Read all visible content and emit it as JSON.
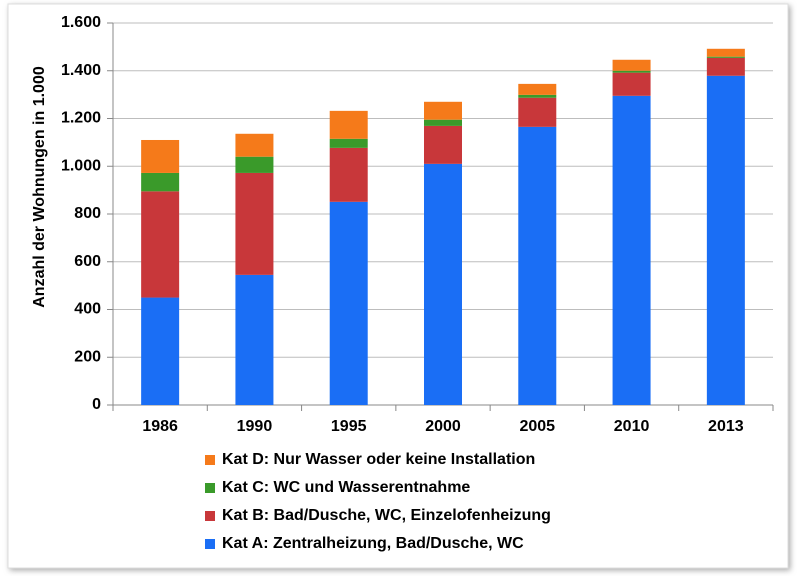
{
  "chart_data": {
    "type": "stacked_bar",
    "y_axis_label": "Anzahl der Wohnungen in 1.000",
    "categories": [
      "1986",
      "1990",
      "1995",
      "2000",
      "2005",
      "2010",
      "2013"
    ],
    "series": [
      {
        "name": "Kat A: Zentralheizung, Bad/Dusche, WC",
        "color": "#1a6ef5",
        "values": [
          450,
          545,
          851,
          1010,
          1165,
          1295,
          1379
        ]
      },
      {
        "name": "Kat B: Bad/Dusche, WC, Einzelofenheizung",
        "color": "#c8373a",
        "values": [
          445,
          427,
          226,
          159,
          122,
          97,
          75
        ]
      },
      {
        "name": "Kat C: WC und Wasserentnahme",
        "color": "#3a9a2a",
        "values": [
          77,
          68,
          38,
          26,
          12,
          8,
          5
        ]
      },
      {
        "name": "Kat D: Nur Wasser oder keine Installation",
        "color": "#f57a1a",
        "values": [
          138,
          96,
          117,
          75,
          46,
          46,
          33
        ]
      }
    ],
    "ylim": [
      0,
      1600
    ],
    "yticks": [
      0,
      200,
      400,
      600,
      800,
      {
        "value": 1000,
        "label": "1.000"
      },
      {
        "value": 1200,
        "label": "1.200"
      },
      {
        "value": 1400,
        "label": "1.400"
      },
      {
        "value": 1600,
        "label": "1.600"
      }
    ],
    "grid": true
  }
}
